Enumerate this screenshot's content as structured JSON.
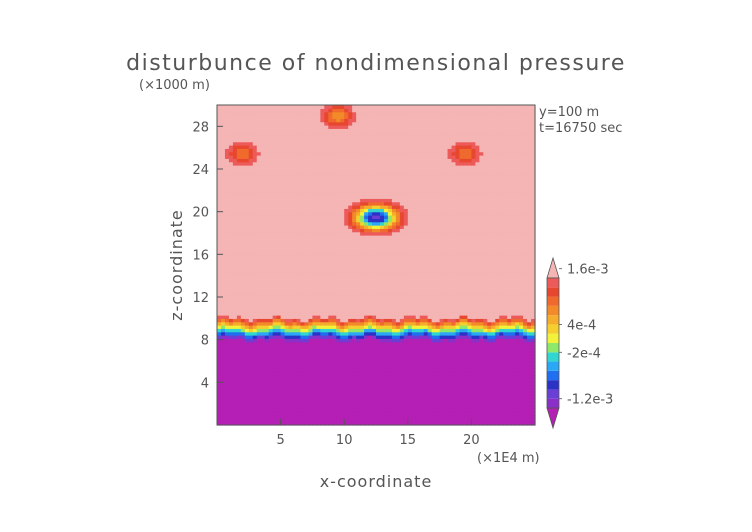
{
  "chart_data": {
    "type": "heatmap",
    "title": "disturbunce of nondimensional pressure",
    "xlabel": "x-coordinate",
    "ylabel": "z-coordinate",
    "x_unit": "(×1E4 m)",
    "y_unit": "(×1000 m)",
    "annotations": [
      "y=100 m",
      "t=16750 sec"
    ],
    "xlim": [
      0,
      25
    ],
    "ylim": [
      0,
      30
    ],
    "x_ticks": [
      5,
      10,
      15,
      20
    ],
    "y_ticks": [
      4,
      8,
      12,
      16,
      20,
      24,
      28
    ],
    "colorbar": {
      "levels": [
        -0.0014,
        -0.0012,
        -0.001,
        -0.0008,
        -0.0006,
        -0.0004,
        -0.0002,
        0,
        0.0002,
        0.0004,
        0.0006,
        0.0008,
        0.001,
        0.0012,
        0.0014,
        0.0016
      ],
      "colors": [
        "#b41fb4",
        "#8a30c8",
        "#6a3fd6",
        "#2b33c7",
        "#1f6ff0",
        "#2aa8f5",
        "#31d6d0",
        "#8ee86a",
        "#f2f23a",
        "#f5cf2e",
        "#f5ad2b",
        "#f28a2a",
        "#ef6a2c",
        "#e8472f",
        "#ec5a5a",
        "#f5b5b5"
      ],
      "tick_labels": [
        "1.6e-3",
        "4e-4",
        "-2e-4",
        "-1.2e-3"
      ],
      "tick_values": [
        0.0016,
        0.0004,
        -0.0002,
        -0.0012
      ]
    },
    "background_level": 0.0016,
    "lower_layer": {
      "z_top": 8.5,
      "value": -0.0014
    },
    "transition_band": {
      "z_from": 8.0,
      "z_to": 10.2
    },
    "features": [
      {
        "name": "negative anomaly",
        "x": 12.5,
        "z": 19.5,
        "min_value": -0.0012
      },
      {
        "name": "positive anomaly",
        "x": 2.0,
        "z": 25.5,
        "value": 0.0008
      },
      {
        "name": "positive anomaly",
        "x": 19.5,
        "z": 25.5,
        "value": 0.0008
      },
      {
        "name": "positive anomaly",
        "x": 9.5,
        "z": 29.0,
        "value": 0.0006
      }
    ]
  }
}
